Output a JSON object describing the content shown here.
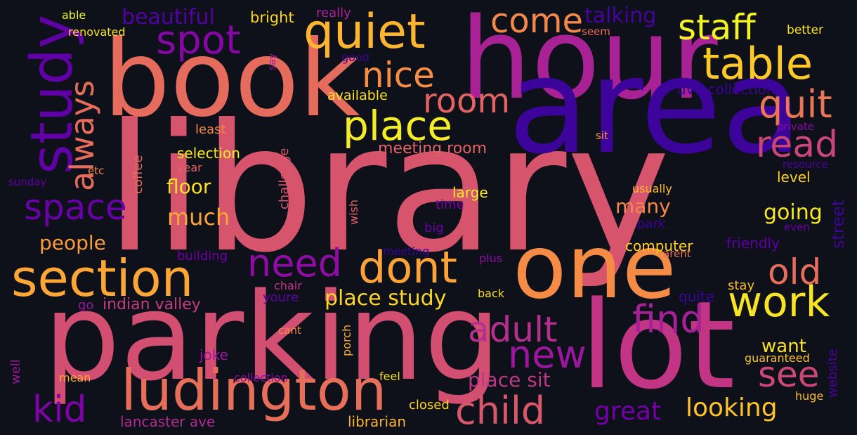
{
  "cloud": {
    "background": "#0f111a",
    "palette": "plasma",
    "words": [
      {
        "text": "library",
        "color": "#d6556d"
      },
      {
        "text": "hour",
        "color": "#a82296"
      },
      {
        "text": "area",
        "color": "#3c049b"
      },
      {
        "text": "book",
        "color": "#e56b5d"
      },
      {
        "text": "parking",
        "color": "#d24f71"
      },
      {
        "text": "one",
        "color": "#f58c46"
      },
      {
        "text": "lot",
        "color": "#c13584"
      },
      {
        "text": "study",
        "color": "#6001a6"
      },
      {
        "text": "quiet",
        "color": "#fdb42f"
      },
      {
        "text": "section",
        "color": "#fca636"
      },
      {
        "text": "ludington",
        "color": "#e76f5a"
      },
      {
        "text": "staff",
        "color": "#f1f525"
      },
      {
        "text": "table",
        "color": "#fdc926"
      },
      {
        "text": "spot",
        "color": "#8707a6"
      },
      {
        "text": "place",
        "color": "#f4ec27"
      },
      {
        "text": "nice",
        "color": "#f68d45"
      },
      {
        "text": "come",
        "color": "#f48849"
      },
      {
        "text": "room",
        "color": "#e16462"
      },
      {
        "text": "quit",
        "color": "#ea7655"
      },
      {
        "text": "read",
        "color": "#ca4678"
      },
      {
        "text": "always",
        "color": "#e66c5c"
      },
      {
        "text": "space",
        "color": "#6a00a8"
      },
      {
        "text": "need",
        "color": "#8f0da4"
      },
      {
        "text": "dont",
        "color": "#fca338"
      },
      {
        "text": "work",
        "color": "#f7e425"
      },
      {
        "text": "old",
        "color": "#e76e5b"
      },
      {
        "text": "find",
        "color": "#a62098"
      },
      {
        "text": "adult",
        "color": "#b52f8c"
      },
      {
        "text": "new",
        "color": "#9c179e"
      },
      {
        "text": "see",
        "color": "#cc4778"
      },
      {
        "text": "kid",
        "color": "#7e03a8"
      },
      {
        "text": "child",
        "color": "#d8576b"
      },
      {
        "text": "looking",
        "color": "#fdc328"
      },
      {
        "text": "great",
        "color": "#7301a8"
      },
      {
        "text": "place study",
        "color": "#fbd724"
      },
      {
        "text": "place sit",
        "color": "#bd3786"
      },
      {
        "text": "want",
        "color": "#f9e221"
      },
      {
        "text": "many",
        "color": "#f48849"
      },
      {
        "text": "going",
        "color": "#f8e725"
      },
      {
        "text": "much",
        "color": "#fca636"
      },
      {
        "text": "people",
        "color": "#fb9b3b"
      },
      {
        "text": "floor",
        "color": "#f8e125"
      },
      {
        "text": "beautiful",
        "color": "#5302a3"
      },
      {
        "text": "talking",
        "color": "#46039f"
      },
      {
        "text": "meeting room",
        "color": "#e16462"
      },
      {
        "text": "selection",
        "color": "#f5eb27"
      },
      {
        "text": "indian valley",
        "color": "#c33d80"
      },
      {
        "text": "lancaster ave",
        "color": "#b12a90"
      },
      {
        "text": "librarian",
        "color": "#fdb32f"
      },
      {
        "text": "closed",
        "color": "#fbd424"
      },
      {
        "text": "computer",
        "color": "#fcce25"
      },
      {
        "text": "friendly",
        "color": "#5c01a6"
      },
      {
        "text": "street",
        "color": "#3e049c"
      },
      {
        "text": "level",
        "color": "#fed526"
      },
      {
        "text": "stay",
        "color": "#fdbf2a"
      },
      {
        "text": "quite",
        "color": "#3a049a"
      },
      {
        "text": "website",
        "color": "#4c02a1"
      },
      {
        "text": "guaranteed",
        "color": "#fdc328"
      },
      {
        "text": "huge",
        "color": "#febd2a"
      },
      {
        "text": "large",
        "color": "#f5eb27"
      },
      {
        "text": "time",
        "color": "#7e03a8"
      },
      {
        "text": "big",
        "color": "#6a00a8"
      },
      {
        "text": "available",
        "color": "#f8e125"
      },
      {
        "text": "dvd collection",
        "color": "#3a049a"
      },
      {
        "text": "good",
        "color": "#3c049b"
      },
      {
        "text": "really",
        "color": "#aa2395"
      },
      {
        "text": "bright",
        "color": "#fbd724"
      },
      {
        "text": "able",
        "color": "#f0f921"
      },
      {
        "text": "renovated",
        "color": "#f8e325"
      },
      {
        "text": "say",
        "color": "#9c179e"
      },
      {
        "text": "seem",
        "color": "#e56b5d"
      },
      {
        "text": "better",
        "color": "#f8e125"
      },
      {
        "text": "least",
        "color": "#f48849"
      },
      {
        "text": "sit",
        "color": "#fb9f3a"
      },
      {
        "text": "private",
        "color": "#8d0ba5"
      },
      {
        "text": "resource",
        "color": "#4c02a1"
      },
      {
        "text": "usually",
        "color": "#fdbf2a"
      },
      {
        "text": "park",
        "color": "#3a049a"
      },
      {
        "text": "even",
        "color": "#6a00a8"
      },
      {
        "text": "arent",
        "color": "#e97158"
      },
      {
        "text": "plus",
        "color": "#8f0da4"
      },
      {
        "text": "meeting",
        "color": "#3c049b"
      },
      {
        "text": "building",
        "color": "#6f00a8"
      },
      {
        "text": "chair",
        "color": "#c13584"
      },
      {
        "text": "youre",
        "color": "#6001a6"
      },
      {
        "text": "go",
        "color": "#9814a0"
      },
      {
        "text": "back",
        "color": "#f8df25"
      },
      {
        "text": "cant",
        "color": "#f48849"
      },
      {
        "text": "feel",
        "color": "#f9dc24"
      },
      {
        "text": "joke",
        "color": "#9c179e"
      },
      {
        "text": "mean",
        "color": "#fca636"
      },
      {
        "text": "collection",
        "color": "#8b0aa5"
      },
      {
        "text": "well",
        "color": "#9814a0"
      },
      {
        "text": "porch",
        "color": "#fdae32"
      },
      {
        "text": "wish",
        "color": "#e16462"
      },
      {
        "text": "challenge",
        "color": "#d8576b"
      },
      {
        "text": "coffee",
        "color": "#e56b5d"
      },
      {
        "text": "year",
        "color": "#e16462"
      },
      {
        "text": "etc",
        "color": "#f48849"
      },
      {
        "text": "sunday",
        "color": "#5c01a6"
      }
    ]
  }
}
